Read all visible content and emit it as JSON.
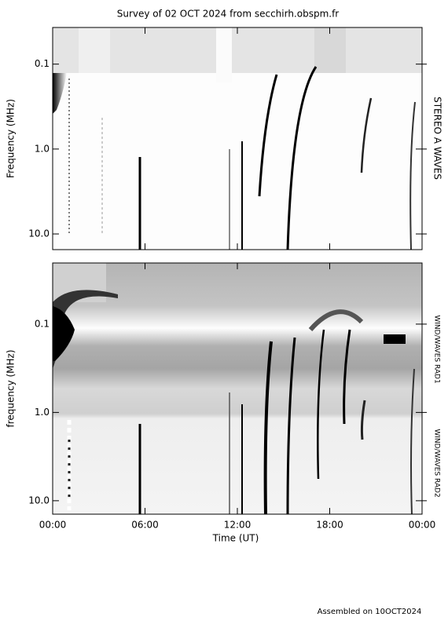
{
  "chart_data": {
    "type": "spectrogram",
    "title": "Survey of 02 OCT 2024 from secchirh.obspm.fr",
    "xlabel": "Time (UT)",
    "xlim": [
      0,
      24
    ],
    "xticks": [
      {
        "value": 0,
        "label": "00:00"
      },
      {
        "value": 6,
        "label": "06:00"
      },
      {
        "value": 12,
        "label": "12:00"
      },
      {
        "value": 18,
        "label": "18:00"
      },
      {
        "value": 24,
        "label": "00:00"
      }
    ],
    "panels": [
      {
        "ylabel": "Frequency (MHz)",
        "instruments": [
          "STEREO A WAVES"
        ],
        "yscale": "log",
        "ylim": [
          15.3,
          0.037
        ],
        "yticks": [
          0.1,
          {
            "value": 1,
            "label": "1.0"
          },
          {
            "value": 10,
            "label": "10.0"
          }
        ]
      },
      {
        "ylabel": "frequency (MHz)",
        "instruments": [
          "WIND/WAVES RAD1",
          "WIND/WAVES RAD2"
        ],
        "yscale": "log",
        "ylim": [
          14.2,
          0.0203
        ],
        "yticks": [
          0.1,
          {
            "value": 1,
            "label": "1.0"
          },
          {
            "value": 10,
            "label": "10.0"
          }
        ]
      }
    ],
    "footer": "Assembled on 10OCT2024"
  }
}
